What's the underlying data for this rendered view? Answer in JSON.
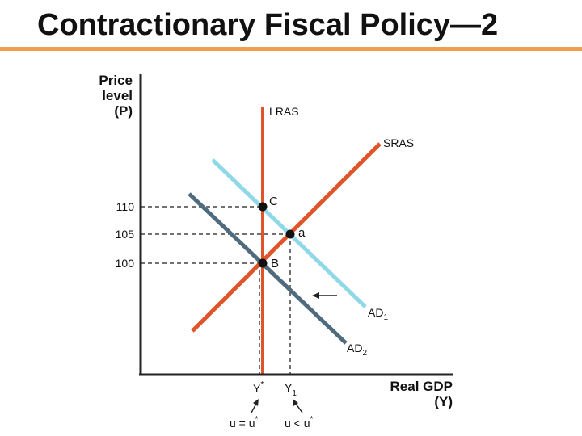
{
  "slide": {
    "title": "Contractionary Fiscal Policy—2",
    "rule_color": "#F0A04B"
  },
  "diagram": {
    "y_axis_label": [
      "Price",
      "level",
      "(P)"
    ],
    "x_axis_label": [
      "Real GDP",
      "(Y)"
    ],
    "price_ticks": [
      "110",
      "105",
      "100"
    ],
    "curves": {
      "lras": "LRAS",
      "sras": "SRAS",
      "ad1": "AD",
      "ad1_sub": "1",
      "ad2": "AD",
      "ad2_sub": "2"
    },
    "points": {
      "c": "C",
      "a": "a",
      "b": "B"
    },
    "output_ticks": {
      "y_star": "Y",
      "y_star_sup": "*",
      "y1": "Y",
      "y1_sub": "1"
    },
    "notes": {
      "left_main": "u = u",
      "left_sup": "*",
      "right_main": "u < u",
      "right_sup": "*"
    },
    "colors": {
      "lras": "#E0542A",
      "sras": "#E0542A",
      "ad1": "#8FD8E8",
      "ad2": "#4F6B7D",
      "axis": "#222222",
      "guide": "#444444",
      "point": "#111111"
    }
  }
}
